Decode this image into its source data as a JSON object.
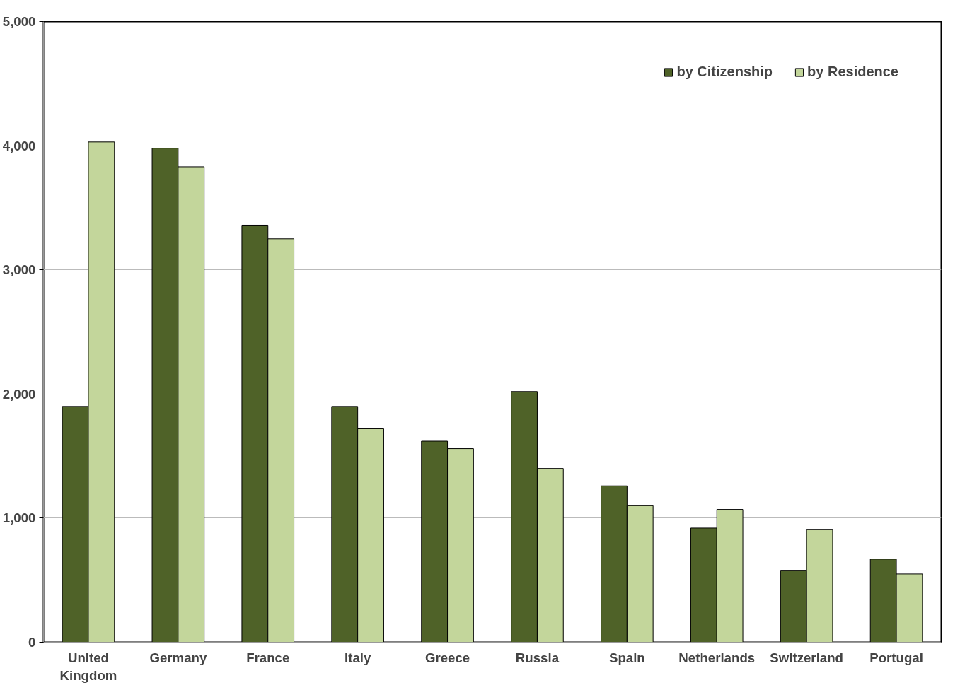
{
  "chart_data": {
    "type": "bar",
    "categories": [
      "United Kingdom",
      "Germany",
      "France",
      "Italy",
      "Greece",
      "Russia",
      "Spain",
      "Netherlands",
      "Switzerland",
      "Portugal"
    ],
    "series": [
      {
        "name": "by Citizenship",
        "color": "#4f6228",
        "values": [
          1900,
          3980,
          3360,
          1900,
          1620,
          2020,
          1260,
          920,
          580,
          670
        ]
      },
      {
        "name": "by Residence",
        "color": "#c3d69b",
        "values": [
          4030,
          3830,
          3250,
          1720,
          1560,
          1400,
          1100,
          1070,
          910,
          550
        ]
      }
    ],
    "ylim": [
      0,
      5000
    ],
    "yticks": [
      0,
      {
        "value": 1000,
        "label": "1,000"
      },
      {
        "value": 2000,
        "label": "2,000"
      },
      {
        "value": 3000,
        "label": "3,000"
      },
      {
        "value": 4000,
        "label": "4,000"
      },
      {
        "value": 5000,
        "label": "5,000"
      }
    ],
    "grid": "y",
    "legend": "top right"
  }
}
